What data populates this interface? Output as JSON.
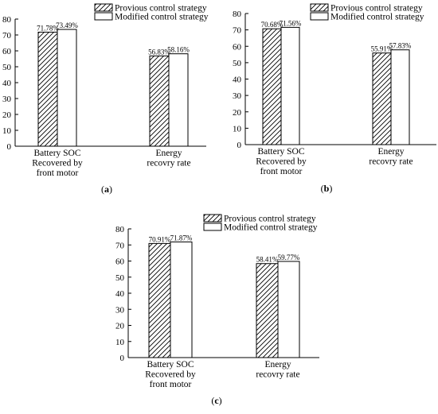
{
  "chart_data": [
    {
      "type": "bar",
      "panel": "(a)",
      "panel_letter": "a",
      "categories": [
        "Battery SOC\nRecovered by\nfront motor",
        "Energy\nrecovry rate"
      ],
      "series": [
        {
          "name": "Provious control strategy",
          "values": [
            71.78,
            56.83
          ],
          "labels": [
            "71.78%",
            "56.83%"
          ],
          "pattern": "hatch"
        },
        {
          "name": "Modified control strategy",
          "values": [
            73.49,
            58.16
          ],
          "labels": [
            "73.49%",
            "58.16%"
          ],
          "pattern": "white"
        }
      ],
      "ylim": [
        0,
        80
      ],
      "yticks": [
        0,
        10,
        20,
        30,
        40,
        50,
        60,
        70,
        80
      ],
      "legend": "top-right",
      "grid": false
    },
    {
      "type": "bar",
      "panel": "(b)",
      "panel_letter": "b",
      "categories": [
        "Battery SOC\nRecovered by\nfront motor",
        "Energy\nrecovry rate"
      ],
      "series": [
        {
          "name": "Provious control strategy",
          "values": [
            70.68,
            55.91
          ],
          "labels": [
            "70.68%",
            "55.91%"
          ],
          "pattern": "hatch"
        },
        {
          "name": "Modified control strategy",
          "values": [
            71.56,
            57.83
          ],
          "labels": [
            "71.56%",
            "57.83%"
          ],
          "pattern": "white"
        }
      ],
      "ylim": [
        0,
        80
      ],
      "yticks": [
        0,
        10,
        20,
        30,
        40,
        50,
        60,
        70,
        80
      ],
      "legend": "top-right",
      "grid": false
    },
    {
      "type": "bar",
      "panel": "(c)",
      "panel_letter": "c",
      "categories": [
        "Battery SOC\nRecovered by\nfront motor",
        "Energy\nrecovry rate"
      ],
      "series": [
        {
          "name": "Provious control strategy",
          "values": [
            70.91,
            58.41
          ],
          "labels": [
            "70.91%",
            "58.41%"
          ],
          "pattern": "hatch"
        },
        {
          "name": "Modified control strategy",
          "values": [
            71.87,
            59.77
          ],
          "labels": [
            "71.87%",
            "59.77%"
          ],
          "pattern": "white"
        }
      ],
      "ylim": [
        0,
        80
      ],
      "yticks": [
        0,
        10,
        20,
        30,
        40,
        50,
        60,
        70,
        80
      ],
      "legend": "top-right",
      "grid": false
    }
  ]
}
